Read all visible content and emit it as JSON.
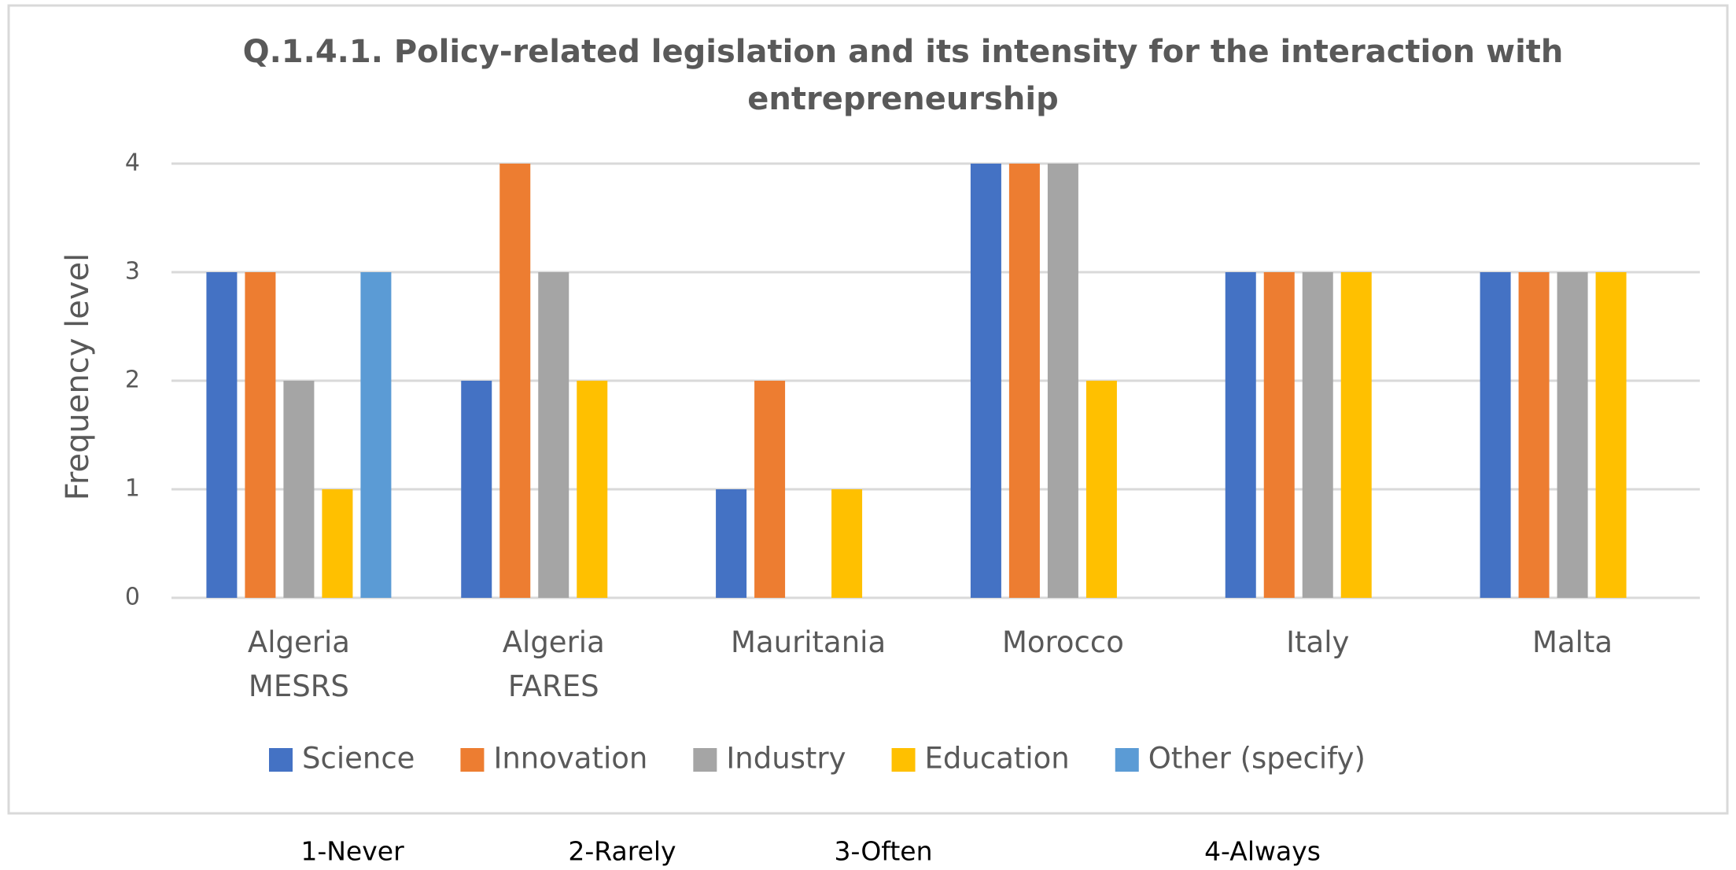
{
  "chart_data": {
    "type": "bar",
    "title": "Q.1.4.1. Policy-related legislation and its intensity for the interaction with entrepreneurship",
    "ylabel": "Frequency level",
    "categories": [
      "Algeria MESRS",
      "Algeria FARES",
      "Mauritania",
      "Morocco",
      "Italy",
      "Malta"
    ],
    "series": [
      {
        "name": "Science",
        "color": "#4472c4",
        "values": [
          3,
          2,
          1,
          4,
          3,
          3
        ]
      },
      {
        "name": "Innovation",
        "color": "#ed7d31",
        "values": [
          3,
          4,
          2,
          4,
          3,
          3
        ]
      },
      {
        "name": "Industry",
        "color": "#a5a5a5",
        "values": [
          2,
          3,
          0,
          4,
          3,
          3
        ]
      },
      {
        "name": "Education",
        "color": "#ffc000",
        "values": [
          1,
          2,
          1,
          2,
          3,
          3
        ]
      },
      {
        "name": "Other (specify)",
        "color": "#5b9bd5",
        "values": [
          3,
          0,
          0,
          0,
          0,
          0
        ]
      }
    ],
    "ylim": [
      0,
      4
    ],
    "yticks": [
      0,
      1,
      2,
      3,
      4
    ],
    "grid": true,
    "legend": "bottom",
    "notes": [
      "1-Never",
      "2-Rarely",
      "3-Often",
      "4-Always"
    ]
  }
}
